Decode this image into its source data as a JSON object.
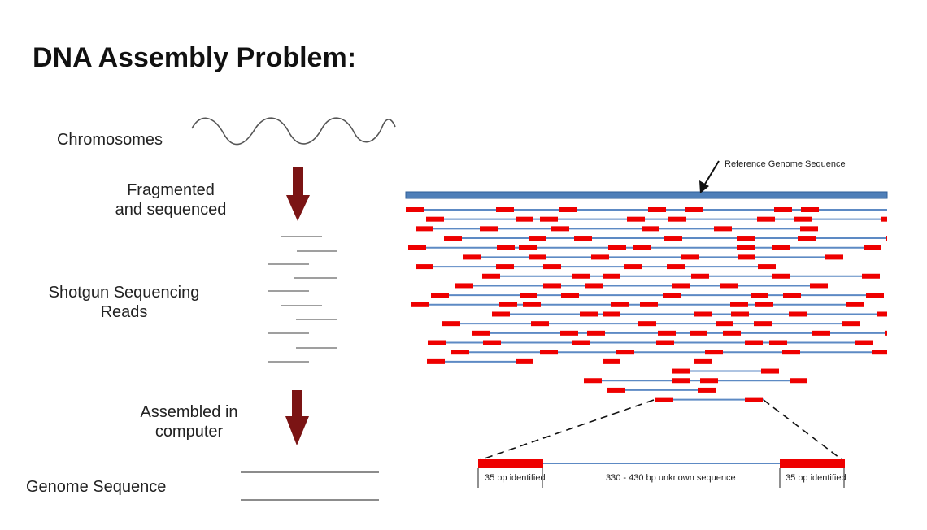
{
  "title": "DNA Assembly Problem:",
  "left_panel": {
    "chromosomes": "Chromosomes",
    "fragmented": [
      "Fragmented",
      "and sequenced"
    ],
    "reads": [
      "Shotgun Sequencing",
      "Reads"
    ],
    "assembled": [
      "Assembled in",
      "computer"
    ],
    "genome": "Genome Sequence"
  },
  "right_panel": {
    "reference_label": "Reference Genome Sequence",
    "left_end_label": "35 bp identified",
    "middle_label": "330 - 430 bp unknown sequence",
    "right_end_label": "35 bp identified"
  },
  "colors": {
    "arrow": "#7b1414",
    "reference": "#4f7fb8",
    "read_line": "#5d8ac4",
    "read_end": "#ee0000"
  }
}
